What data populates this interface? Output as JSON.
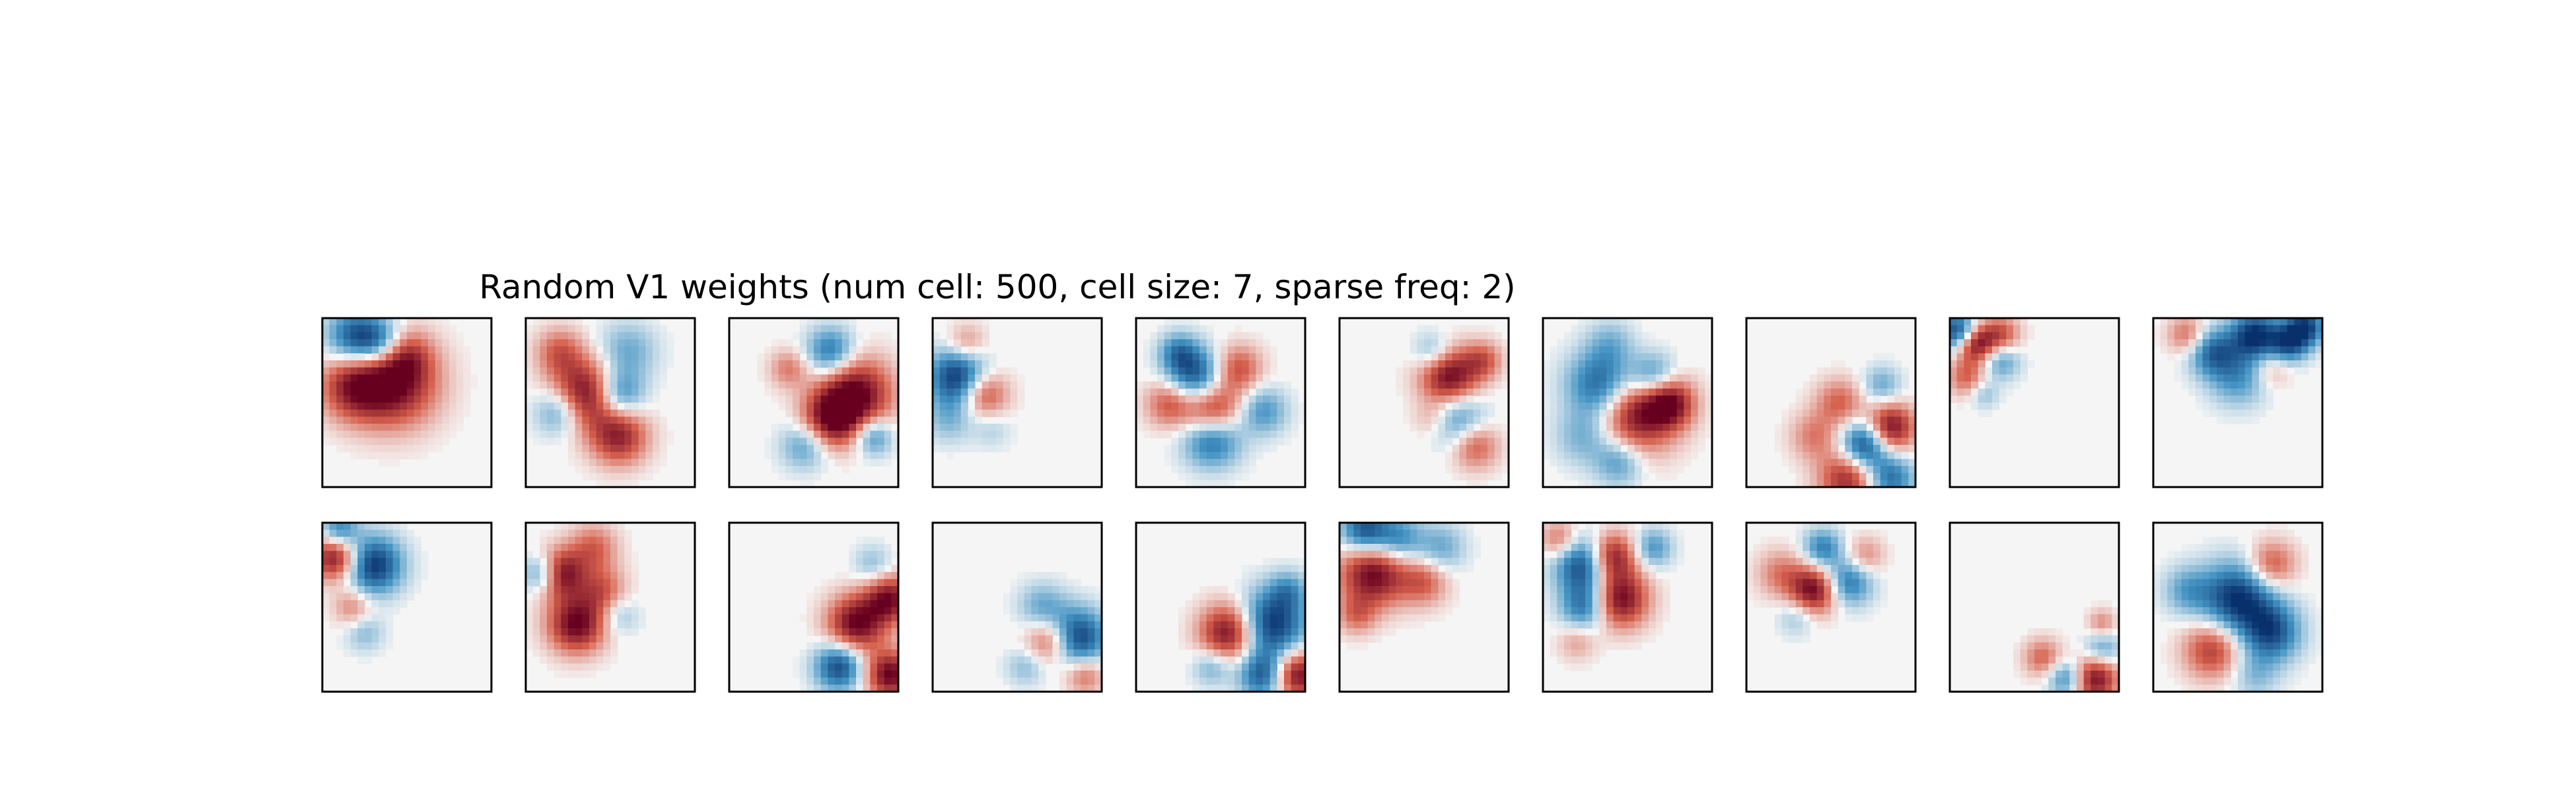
{
  "figure": {
    "title": "Random V1 weights (num cell: 500, cell size: 7, sparse freq: 2)",
    "background": "#ffffff"
  },
  "chart_data": {
    "type": "heatmap",
    "title": "Random V1 weights (num cell: 500, cell size: 7, sparse freq: 2)",
    "grid": "2 rows x 10 columns",
    "colormap": "RdBu_r",
    "colors": {
      "negative": "#08306b",
      "zero": "#f5f5f5",
      "positive": "#67001f"
    },
    "axes_ticks": false,
    "panels": [
      {
        "row": 0,
        "col": 0,
        "blobs": [
          [
            0.2,
            0.12,
            0.12,
            -0.9
          ],
          [
            0.42,
            0.38,
            0.18,
            1.0
          ],
          [
            0.18,
            0.4,
            0.14,
            0.7
          ],
          [
            0.35,
            0.15,
            0.1,
            -0.6
          ],
          [
            0.5,
            0.22,
            0.1,
            0.4
          ]
        ]
      },
      {
        "row": 0,
        "col": 1,
        "blobs": [
          [
            0.35,
            0.45,
            0.14,
            1.0
          ],
          [
            0.55,
            0.45,
            0.1,
            -0.7
          ],
          [
            0.2,
            0.55,
            0.1,
            -0.6
          ],
          [
            0.55,
            0.7,
            0.12,
            0.8
          ],
          [
            0.2,
            0.2,
            0.1,
            0.5
          ],
          [
            0.6,
            0.2,
            0.12,
            -0.4
          ]
        ]
      },
      {
        "row": 0,
        "col": 2,
        "blobs": [
          [
            0.75,
            0.45,
            0.15,
            1.0
          ],
          [
            0.6,
            0.6,
            0.12,
            0.9
          ],
          [
            0.6,
            0.2,
            0.1,
            -0.7
          ],
          [
            0.45,
            0.75,
            0.1,
            -0.5
          ],
          [
            0.35,
            0.3,
            0.08,
            0.4
          ],
          [
            0.85,
            0.7,
            0.08,
            -0.6
          ]
        ]
      },
      {
        "row": 0,
        "col": 3,
        "blobs": [
          [
            0.15,
            0.35,
            0.12,
            -1.0
          ],
          [
            0.3,
            0.45,
            0.1,
            0.7
          ],
          [
            0.2,
            0.15,
            0.08,
            0.4
          ],
          [
            0.1,
            0.6,
            0.1,
            -0.3
          ],
          [
            0.35,
            0.65,
            0.08,
            -0.2
          ]
        ]
      },
      {
        "row": 0,
        "col": 4,
        "blobs": [
          [
            0.35,
            0.35,
            0.12,
            -0.9
          ],
          [
            0.45,
            0.55,
            0.12,
            1.0
          ],
          [
            0.6,
            0.3,
            0.1,
            0.6
          ],
          [
            0.45,
            0.7,
            0.12,
            -0.9
          ],
          [
            0.2,
            0.5,
            0.1,
            0.6
          ],
          [
            0.75,
            0.55,
            0.1,
            -0.5
          ],
          [
            0.25,
            0.2,
            0.08,
            -0.5
          ]
        ]
      },
      {
        "row": 0,
        "col": 5,
        "blobs": [
          [
            0.65,
            0.35,
            0.12,
            1.0
          ],
          [
            0.7,
            0.6,
            0.12,
            -0.6
          ],
          [
            0.8,
            0.75,
            0.1,
            0.6
          ],
          [
            0.55,
            0.2,
            0.08,
            -0.4
          ],
          [
            0.85,
            0.25,
            0.08,
            0.5
          ],
          [
            0.55,
            0.6,
            0.08,
            0.3
          ]
        ]
      },
      {
        "row": 0,
        "col": 6,
        "blobs": [
          [
            0.55,
            0.55,
            0.17,
            1.0
          ],
          [
            0.35,
            0.4,
            0.14,
            -0.9
          ],
          [
            0.65,
            0.35,
            0.1,
            -0.7
          ],
          [
            0.75,
            0.5,
            0.1,
            0.8
          ],
          [
            0.45,
            0.85,
            0.1,
            -0.5
          ],
          [
            0.25,
            0.7,
            0.12,
            -0.4
          ],
          [
            0.4,
            0.15,
            0.1,
            -0.3
          ]
        ]
      },
      {
        "row": 0,
        "col": 7,
        "blobs": [
          [
            0.7,
            0.75,
            0.1,
            -1.0
          ],
          [
            0.85,
            0.65,
            0.1,
            1.0
          ],
          [
            0.6,
            0.95,
            0.12,
            0.8
          ],
          [
            0.85,
            0.95,
            0.1,
            -0.7
          ],
          [
            0.55,
            0.5,
            0.1,
            0.5
          ],
          [
            0.4,
            0.7,
            0.1,
            0.4
          ],
          [
            0.8,
            0.4,
            0.08,
            -0.4
          ]
        ]
      },
      {
        "row": 0,
        "col": 8,
        "blobs": [
          [
            0.05,
            0.08,
            0.08,
            -1.0
          ],
          [
            0.15,
            0.15,
            0.08,
            1.0
          ],
          [
            0.3,
            0.1,
            0.08,
            0.6
          ],
          [
            0.3,
            0.25,
            0.08,
            -0.5
          ],
          [
            0.1,
            0.35,
            0.08,
            0.5
          ],
          [
            0.2,
            0.45,
            0.06,
            -0.3
          ]
        ]
      },
      {
        "row": 0,
        "col": 9,
        "blobs": [
          [
            0.6,
            0.1,
            0.1,
            -1.0
          ],
          [
            0.35,
            0.2,
            0.1,
            -0.7
          ],
          [
            0.8,
            0.15,
            0.08,
            -0.8
          ],
          [
            0.5,
            0.35,
            0.12,
            -0.5
          ],
          [
            0.2,
            0.1,
            0.08,
            0.5
          ],
          [
            0.9,
            0.05,
            0.08,
            -0.9
          ],
          [
            0.7,
            0.3,
            0.08,
            0.3
          ]
        ]
      },
      {
        "row": 1,
        "col": 0,
        "blobs": [
          [
            0.3,
            0.25,
            0.12,
            -1.0
          ],
          [
            0.08,
            0.2,
            0.1,
            1.0
          ],
          [
            0.1,
            0.05,
            0.08,
            -0.7
          ],
          [
            0.18,
            0.5,
            0.08,
            0.4
          ],
          [
            0.25,
            0.65,
            0.08,
            -0.3
          ]
        ]
      },
      {
        "row": 1,
        "col": 1,
        "blobs": [
          [
            0.2,
            0.3,
            0.1,
            1.0
          ],
          [
            0.3,
            0.6,
            0.12,
            1.0
          ],
          [
            0.1,
            0.3,
            0.08,
            -0.7
          ],
          [
            0.45,
            0.4,
            0.1,
            0.5
          ],
          [
            0.4,
            0.15,
            0.1,
            0.5
          ],
          [
            0.55,
            0.55,
            0.08,
            -0.3
          ]
        ]
      },
      {
        "row": 1,
        "col": 2,
        "blobs": [
          [
            0.75,
            0.6,
            0.12,
            1.0
          ],
          [
            0.95,
            0.45,
            0.1,
            0.9
          ],
          [
            0.65,
            0.85,
            0.1,
            -0.9
          ],
          [
            0.95,
            0.9,
            0.1,
            1.0
          ],
          [
            0.85,
            0.25,
            0.08,
            -0.3
          ]
        ]
      },
      {
        "row": 1,
        "col": 3,
        "blobs": [
          [
            0.85,
            0.68,
            0.12,
            -1.0
          ],
          [
            0.7,
            0.7,
            0.1,
            0.7
          ],
          [
            0.65,
            0.5,
            0.1,
            -0.4
          ],
          [
            0.9,
            0.9,
            0.08,
            0.5
          ],
          [
            0.55,
            0.85,
            0.08,
            -0.3
          ]
        ]
      },
      {
        "row": 1,
        "col": 4,
        "blobs": [
          [
            0.8,
            0.6,
            0.14,
            -1.0
          ],
          [
            0.55,
            0.65,
            0.12,
            1.0
          ],
          [
            0.95,
            0.9,
            0.1,
            1.0
          ],
          [
            0.75,
            0.9,
            0.1,
            -0.8
          ],
          [
            0.45,
            0.85,
            0.08,
            -0.4
          ],
          [
            0.9,
            0.4,
            0.08,
            -0.4
          ]
        ]
      },
      {
        "row": 1,
        "col": 5,
        "blobs": [
          [
            0.2,
            0.3,
            0.14,
            1.0
          ],
          [
            0.15,
            0.05,
            0.1,
            -0.9
          ],
          [
            0.35,
            0.1,
            0.1,
            -0.6
          ],
          [
            0.5,
            0.35,
            0.1,
            0.5
          ],
          [
            0.1,
            0.55,
            0.08,
            0.4
          ],
          [
            0.6,
            0.15,
            0.1,
            -0.4
          ]
        ]
      },
      {
        "row": 1,
        "col": 6,
        "blobs": [
          [
            0.25,
            0.25,
            0.12,
            -1.0
          ],
          [
            0.4,
            0.2,
            0.1,
            1.0
          ],
          [
            0.45,
            0.45,
            0.12,
            1.0
          ],
          [
            0.25,
            0.5,
            0.1,
            -0.7
          ],
          [
            0.65,
            0.15,
            0.08,
            -0.5
          ],
          [
            0.1,
            0.1,
            0.08,
            0.5
          ],
          [
            0.2,
            0.7,
            0.08,
            0.3
          ]
        ]
      },
      {
        "row": 1,
        "col": 7,
        "blobs": [
          [
            0.4,
            0.4,
            0.1,
            1.0
          ],
          [
            0.6,
            0.35,
            0.1,
            -0.7
          ],
          [
            0.45,
            0.15,
            0.08,
            -0.6
          ],
          [
            0.2,
            0.3,
            0.1,
            0.4
          ],
          [
            0.7,
            0.2,
            0.08,
            0.4
          ],
          [
            0.3,
            0.55,
            0.08,
            -0.3
          ]
        ]
      },
      {
        "row": 1,
        "col": 8,
        "blobs": [
          [
            0.85,
            0.92,
            0.1,
            1.0
          ],
          [
            0.7,
            0.92,
            0.08,
            -0.7
          ],
          [
            0.9,
            0.75,
            0.08,
            -0.5
          ],
          [
            0.55,
            0.8,
            0.08,
            0.5
          ],
          [
            0.9,
            0.6,
            0.06,
            0.4
          ]
        ]
      },
      {
        "row": 1,
        "col": 9,
        "blobs": [
          [
            0.5,
            0.45,
            0.15,
            -1.0
          ],
          [
            0.7,
            0.65,
            0.12,
            -0.8
          ],
          [
            0.35,
            0.75,
            0.12,
            0.7
          ],
          [
            0.7,
            0.25,
            0.1,
            0.6
          ],
          [
            0.2,
            0.4,
            0.1,
            -0.4
          ],
          [
            0.6,
            0.9,
            0.1,
            -0.3
          ]
        ]
      }
    ]
  }
}
